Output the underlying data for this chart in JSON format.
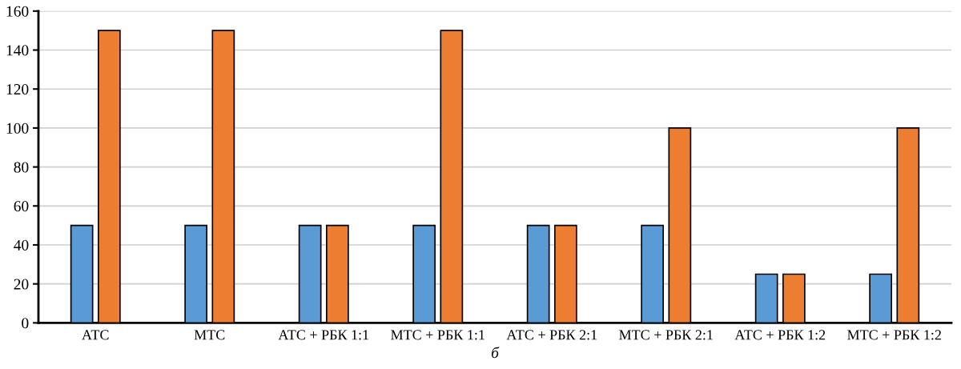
{
  "chart_data": {
    "type": "bar",
    "xlabel": "б",
    "categories": [
      "АТС",
      "МТС",
      "АТС + РБК 1:1",
      "МТС + РБК 1:1",
      "АТС + РБК 2:1",
      "МТС + РБК 2:1",
      "АТС + РБК 1:2",
      "МТС + РБК 1:2"
    ],
    "series": [
      {
        "color": "#5b9bd5",
        "values": [
          50,
          50,
          50,
          50,
          50,
          50,
          25,
          25
        ]
      },
      {
        "color": "#ed7d31",
        "values": [
          150,
          150,
          50,
          150,
          50,
          100,
          25,
          100
        ]
      }
    ],
    "ylim": [
      0,
      160
    ],
    "yticks": [
      0,
      20,
      40,
      60,
      80,
      100,
      120,
      140,
      160
    ],
    "grid": "y",
    "legend": false
  }
}
